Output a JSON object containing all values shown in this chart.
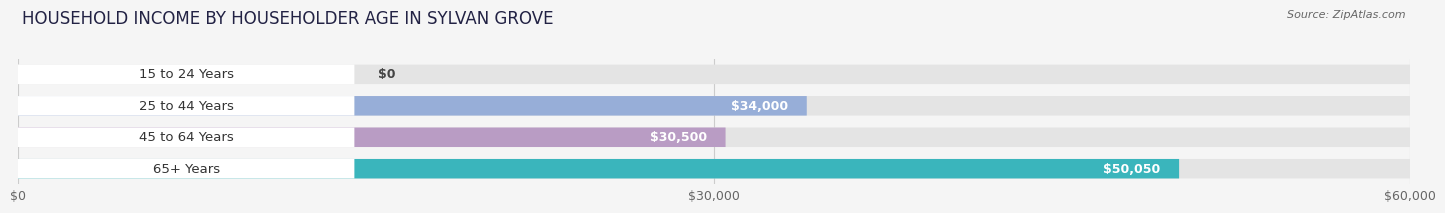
{
  "title": "HOUSEHOLD INCOME BY HOUSEHOLDER AGE IN SYLVAN GROVE",
  "source": "Source: ZipAtlas.com",
  "categories": [
    "15 to 24 Years",
    "25 to 44 Years",
    "45 to 64 Years",
    "65+ Years"
  ],
  "values": [
    0,
    34000,
    30500,
    50050
  ],
  "bar_colors": [
    "#f2a0a8",
    "#97aed8",
    "#b99cc4",
    "#3ab5bc"
  ],
  "bar_labels": [
    "$0",
    "$34,000",
    "$30,500",
    "$50,050"
  ],
  "xlim": [
    0,
    60000
  ],
  "xticks": [
    0,
    30000,
    60000
  ],
  "xticklabels": [
    "$0",
    "$30,000",
    "$60,000"
  ],
  "background_color": "#f5f5f5",
  "bar_bg_color": "#e4e4e4",
  "label_bg_color": "#ffffff",
  "title_fontsize": 12,
  "label_fontsize": 9.5,
  "value_fontsize": 9,
  "tick_fontsize": 9
}
